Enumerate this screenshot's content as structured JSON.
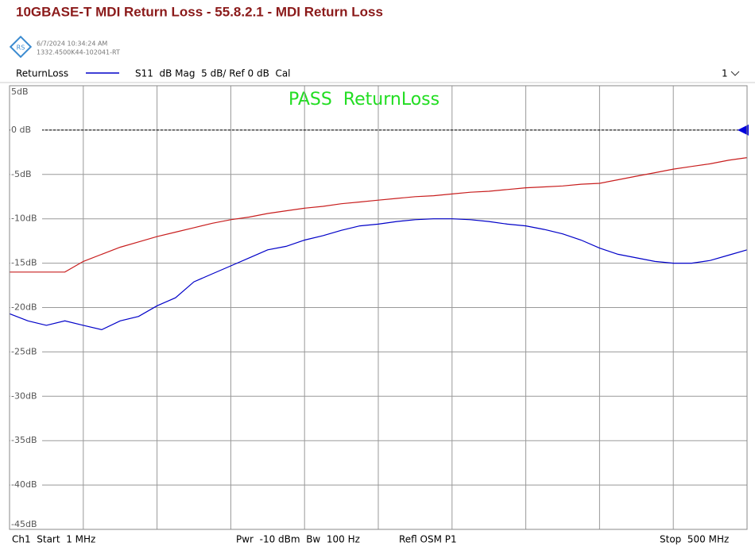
{
  "chart_data": {
    "type": "line",
    "title": "10GBASE-T MDI Return Loss - 55.8.2.1 - MDI Return Loss",
    "timestamp": "6/7/2024 10:34:24 AM",
    "instrument_id": "1332.4500K44-102041-RT",
    "trace_info": "S11  dB Mag  5 dB/ Ref 0 dB  Cal",
    "window_number": "1",
    "annotation": "PASS  ReturnLoss",
    "footer": [
      "Ch1  Start  1 MHz",
      "Pwr  -10 dBm  Bw  100 Hz",
      "Refl OSM P1",
      "Stop  500 MHz"
    ],
    "reference_level": 0,
    "xlim": [
      1,
      500
    ],
    "ylim": [
      -45,
      5
    ],
    "yticks": [
      {
        "value": 5,
        "label": "5dB"
      },
      {
        "value": 0,
        "label": "0 dB"
      },
      {
        "value": -5,
        "label": "-5dB"
      },
      {
        "value": -10,
        "label": "-10dB"
      },
      {
        "value": -15,
        "label": "-15dB"
      },
      {
        "value": -20,
        "label": "-20dB"
      },
      {
        "value": -25,
        "label": "-25dB"
      },
      {
        "value": -30,
        "label": "-30dB"
      },
      {
        "value": -35,
        "label": "-35dB"
      },
      {
        "value": -40,
        "label": "-40dB"
      },
      {
        "value": -45,
        "label": "-45dB"
      }
    ],
    "grid": true,
    "x": [
      1,
      13.475,
      25.95,
      38.425,
      50.9,
      63.375,
      75.85,
      88.325,
      100.8,
      113.275,
      125.75,
      138.225,
      150.7,
      163.175,
      175.65,
      188.125,
      200.6,
      213.075,
      225.55,
      238.025,
      250.5,
      262.975,
      275.45,
      287.925,
      300.4,
      312.875,
      325.35,
      337.825,
      350.3,
      362.775,
      375.25,
      387.725,
      400.2,
      412.675,
      425.15,
      437.625,
      450.1,
      462.575,
      475.05,
      487.525,
      500
    ],
    "series": [
      {
        "name": "ReturnLoss",
        "color": "#0000c8",
        "values": [
          -20.7,
          -21.5,
          -22,
          -21.5,
          -22,
          -22.5,
          -21.5,
          -21,
          -19.8,
          -18.9,
          -17.1,
          -16.2,
          -15.3,
          -14.4,
          -13.5,
          -13.1,
          -12.4,
          -11.9,
          -11.3,
          -10.8,
          -10.6,
          -10.3,
          -10.1,
          -10,
          -10,
          -10.1,
          -10.3,
          -10.6,
          -10.8,
          -11.2,
          -11.7,
          -12.4,
          -13.3,
          -14,
          -14.4,
          -14.8,
          -15,
          -15,
          -14.7,
          -14.1,
          -13.5
        ]
      },
      {
        "color": "#c81e1e",
        "values": [
          -16,
          -16,
          -16,
          -16,
          -14.8,
          -14,
          -13.2,
          -12.6,
          -12,
          -11.5,
          -11,
          -10.5,
          -10.1,
          -9.8,
          -9.4,
          -9.1,
          -8.8,
          -8.6,
          -8.3,
          -8.1,
          -7.9,
          -7.7,
          -7.5,
          -7.4,
          -7.2,
          -7,
          -6.9,
          -6.7,
          -6.5,
          -6.4,
          -6.3,
          -6.1,
          -6,
          -5.6,
          -5.2,
          -4.8,
          -4.4,
          -4.1,
          -3.8,
          -3.4,
          -3.1
        ]
      }
    ]
  }
}
